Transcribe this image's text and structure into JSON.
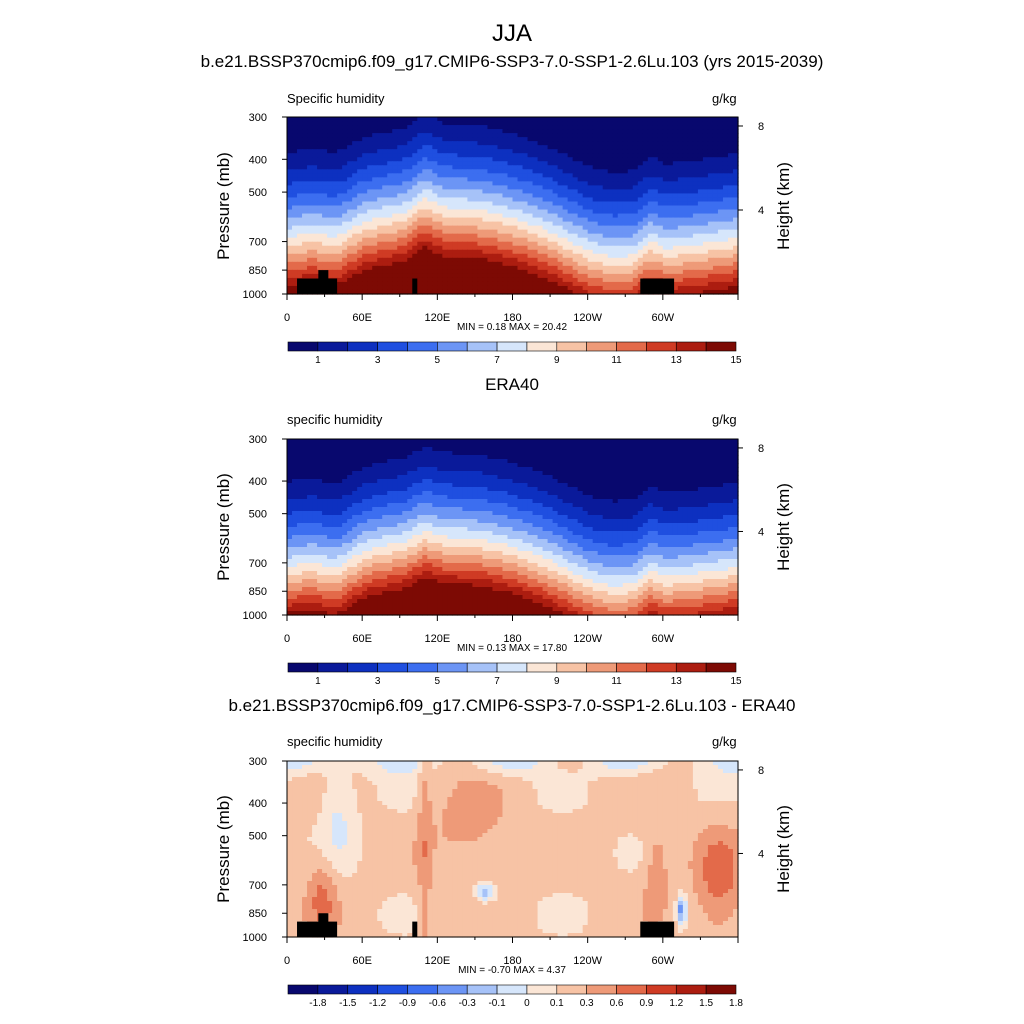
{
  "main_title": "JJA",
  "colors": {
    "levels15": [
      "#08086e",
      "#0a1a9a",
      "#0d30c0",
      "#1f4fe0",
      "#3c6ef0",
      "#6c95f5",
      "#a6c2f8",
      "#d6e6fb",
      "#fbe6d6",
      "#f7c3a5",
      "#ee9a78",
      "#e36a4a",
      "#cf3b24",
      "#ac1d10",
      "#7d0a04"
    ],
    "diff15": [
      "#08086e",
      "#0a1a9a",
      "#0d30c0",
      "#1f4fe0",
      "#3c6ef0",
      "#6c95f5",
      "#a6c2f8",
      "#d6e6fb",
      "#fbe6d6",
      "#f7c3a5",
      "#ee9a78",
      "#e36a4a",
      "#cf3b24",
      "#ac1d10",
      "#7d0a04"
    ],
    "land": "#000000"
  },
  "panels": [
    {
      "title": "b.e21.BSSP370cmip6.f09_g17.CMIP6-SSP3-7.0-SSP1-2.6Lu.103 (yrs 2015-2039)",
      "left_label": "Specific humidity",
      "right_label": "g/kg",
      "ylabel": "Pressure (mb)",
      "rlabel": "Height (km)",
      "minmax": "MIN =   0.18  MAX =  20.42",
      "cb_labels": [
        "1",
        "3",
        "5",
        "7",
        "9",
        "11",
        "13",
        "15"
      ]
    },
    {
      "title": "ERA40",
      "left_label": "specific humidity",
      "right_label": "g/kg",
      "ylabel": "Pressure (mb)",
      "rlabel": "Height (km)",
      "minmax": "MIN =   0.13  MAX =  17.80",
      "cb_labels": [
        "1",
        "3",
        "5",
        "7",
        "9",
        "11",
        "13",
        "15"
      ]
    },
    {
      "title": "b.e21.BSSP370cmip6.f09_g17.CMIP6-SSP3-7.0-SSP1-2.6Lu.103 - ERA40",
      "left_label": "specific humidity",
      "right_label": "g/kg",
      "ylabel": "Pressure (mb)",
      "rlabel": "Height (km)",
      "minmax": "MIN =  -0.70  MAX =   4.37",
      "cb_labels": [
        "-1.8",
        "-1.5",
        "-1.2",
        "-0.9",
        "-0.6",
        "-0.3",
        "-0.1",
        "0",
        "0.1",
        "0.3",
        "0.6",
        "0.9",
        "1.2",
        "1.5",
        "1.8"
      ]
    }
  ],
  "chart_data": [
    {
      "type": "heatmap",
      "title": "b.e21.BSSP370cmip6.f09_g17.CMIP6-SSP3-7.0-SSP1-2.6Lu.103 (yrs 2015-2039)",
      "variable": "Specific humidity",
      "units": "g/kg",
      "xlabel": "",
      "ylabel": "Pressure (mb)",
      "y2label": "Height (km)",
      "x_ticks": [
        "0",
        "60E",
        "120E",
        "180",
        "120W",
        "60W"
      ],
      "y_ticks": [
        300,
        400,
        500,
        700,
        850,
        1000
      ],
      "y2_ticks": [
        8,
        4
      ],
      "contour_levels": [
        1,
        2,
        3,
        4,
        5,
        6,
        7,
        8,
        9,
        10,
        11,
        12,
        13,
        14,
        15
      ],
      "min": 0.18,
      "max": 20.42
    },
    {
      "type": "heatmap",
      "title": "ERA40",
      "variable": "specific humidity",
      "units": "g/kg",
      "ylabel": "Pressure (mb)",
      "y2label": "Height (km)",
      "x_ticks": [
        "0",
        "60E",
        "120E",
        "180",
        "120W",
        "60W"
      ],
      "y_ticks": [
        300,
        400,
        500,
        700,
        850,
        1000
      ],
      "y2_ticks": [
        8,
        4
      ],
      "contour_levels": [
        1,
        2,
        3,
        4,
        5,
        6,
        7,
        8,
        9,
        10,
        11,
        12,
        13,
        14,
        15
      ],
      "min": 0.13,
      "max": 17.8
    },
    {
      "type": "heatmap",
      "title": "b.e21.BSSP370cmip6.f09_g17.CMIP6-SSP3-7.0-SSP1-2.6Lu.103 - ERA40",
      "variable": "specific humidity",
      "units": "g/kg",
      "ylabel": "Pressure (mb)",
      "y2label": "Height (km)",
      "x_ticks": [
        "0",
        "60E",
        "120E",
        "180",
        "120W",
        "60W"
      ],
      "y_ticks": [
        300,
        400,
        500,
        700,
        850,
        1000
      ],
      "y2_ticks": [
        8,
        4
      ],
      "contour_levels": [
        -1.8,
        -1.5,
        -1.2,
        -0.9,
        -0.6,
        -0.3,
        -0.1,
        0,
        0.1,
        0.3,
        0.6,
        0.9,
        1.2,
        1.5,
        1.8
      ],
      "min": -0.7,
      "max": 4.37
    }
  ]
}
